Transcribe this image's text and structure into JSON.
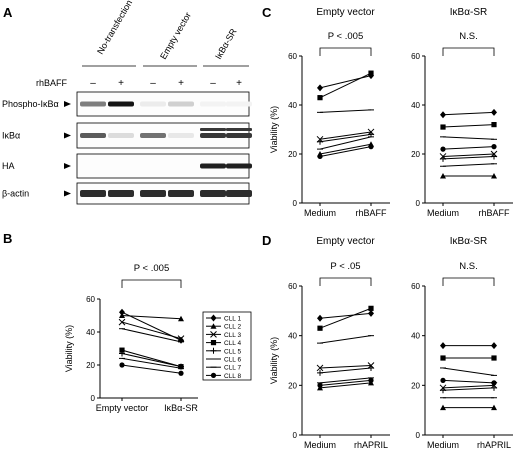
{
  "panels": {
    "A": {
      "letter": "A",
      "columns": [
        "No-transfection",
        "Empty vector",
        "IκBα-SR"
      ],
      "treatment_label": "rhBAFF",
      "signs": [
        "–",
        "+",
        "–",
        "+",
        "–",
        "+"
      ],
      "rows": [
        "Phospho-IκBα",
        "IκBα",
        "HA",
        "β-actin"
      ],
      "row_bands": {
        "Phospho-IκBα": [
          0.55,
          1.0,
          0.08,
          0.2,
          0.05,
          0.05
        ],
        "IκBα": [
          0.7,
          0.15,
          0.6,
          0.1,
          0.85,
          0.85
        ],
        "HA": [
          0,
          0,
          0,
          0,
          0.95,
          0.95
        ],
        "β-actin": [
          0.9,
          0.9,
          0.9,
          0.9,
          0.9,
          0.9
        ]
      }
    },
    "B": {
      "letter": "B",
      "sig": "P < .005"
    },
    "C": {
      "letter": "C"
    },
    "D": {
      "letter": "D"
    }
  },
  "chart_data": [
    {
      "id": "B",
      "type": "line",
      "title": "",
      "ylabel": "Viability (%)",
      "ylim": [
        0,
        60
      ],
      "yticks": [
        0,
        20,
        40,
        60
      ],
      "categories": [
        "Empty vector",
        "IκBα-SR"
      ],
      "sig": "P < .005",
      "legend": [
        "CLL 1",
        "CLL 2",
        "CLL 3",
        "CLL 4",
        "CLL 5",
        "CLL 6",
        "CLL 7",
        "CLL 8"
      ],
      "markers": [
        "diamond",
        "triangle",
        "x",
        "square",
        "plus",
        "line",
        "line",
        "circle"
      ],
      "series": [
        {
          "name": "CLL 1",
          "values": [
            52,
            35
          ]
        },
        {
          "name": "CLL 2",
          "values": [
            50,
            48
          ]
        },
        {
          "name": "CLL 3",
          "values": [
            46,
            36
          ]
        },
        {
          "name": "CLL 4",
          "values": [
            29,
            19
          ]
        },
        {
          "name": "CLL 5",
          "values": [
            27,
            19
          ]
        },
        {
          "name": "CLL 6",
          "values": [
            24,
            18
          ]
        },
        {
          "name": "CLL 7",
          "values": [
            42,
            34
          ]
        },
        {
          "name": "CLL 8",
          "values": [
            20,
            15
          ]
        }
      ]
    },
    {
      "id": "C1",
      "type": "line",
      "title": "Empty vector",
      "ylabel": "Viability (%)",
      "ylim": [
        0,
        60
      ],
      "yticks": [
        0,
        20,
        40,
        60
      ],
      "categories": [
        "Medium",
        "rhBAFF"
      ],
      "sig": "P < .005",
      "markers": [
        "diamond",
        "triangle",
        "x",
        "square",
        "plus",
        "line",
        "line",
        "circle"
      ],
      "series": [
        {
          "name": "CLL 1",
          "values": [
            47,
            52
          ]
        },
        {
          "name": "CLL 2",
          "values": [
            20,
            24
          ]
        },
        {
          "name": "CLL 3",
          "values": [
            26,
            29
          ]
        },
        {
          "name": "CLL 4",
          "values": [
            43,
            53
          ]
        },
        {
          "name": "CLL 5",
          "values": [
            25,
            28
          ]
        },
        {
          "name": "CLL 6",
          "values": [
            22,
            27
          ]
        },
        {
          "name": "CLL 7",
          "values": [
            37,
            38
          ]
        },
        {
          "name": "CLL 8",
          "values": [
            19,
            23
          ]
        }
      ]
    },
    {
      "id": "C2",
      "type": "line",
      "title": "IκBα-SR",
      "ylabel": "",
      "ylim": [
        0,
        60
      ],
      "yticks": [
        0,
        20,
        40,
        60
      ],
      "categories": [
        "Medium",
        "rhBAFF"
      ],
      "sig": "N.S.",
      "markers": [
        "diamond",
        "triangle",
        "x",
        "square",
        "plus",
        "line",
        "line",
        "circle"
      ],
      "series": [
        {
          "name": "CLL 1",
          "values": [
            36,
            37
          ]
        },
        {
          "name": "CLL 2",
          "values": [
            11,
            11
          ]
        },
        {
          "name": "CLL 3",
          "values": [
            19,
            20
          ]
        },
        {
          "name": "CLL 4",
          "values": [
            31,
            32
          ]
        },
        {
          "name": "CLL 5",
          "values": [
            18,
            19
          ]
        },
        {
          "name": "CLL 6",
          "values": [
            15,
            16
          ]
        },
        {
          "name": "CLL 7",
          "values": [
            27,
            26
          ]
        },
        {
          "name": "CLL 8",
          "values": [
            22,
            23
          ]
        }
      ]
    },
    {
      "id": "D1",
      "type": "line",
      "title": "Empty vector",
      "ylabel": "Viability (%)",
      "ylim": [
        0,
        60
      ],
      "yticks": [
        0,
        20,
        40,
        60
      ],
      "categories": [
        "Medium",
        "rhAPRIL"
      ],
      "sig": "P < .05",
      "markers": [
        "diamond",
        "triangle",
        "x",
        "square",
        "plus",
        "line",
        "line",
        "circle"
      ],
      "series": [
        {
          "name": "CLL 1",
          "values": [
            47,
            49
          ]
        },
        {
          "name": "CLL 2",
          "values": [
            19,
            21
          ]
        },
        {
          "name": "CLL 3",
          "values": [
            27,
            28
          ]
        },
        {
          "name": "CLL 4",
          "values": [
            43,
            51
          ]
        },
        {
          "name": "CLL 5",
          "values": [
            25,
            27
          ]
        },
        {
          "name": "CLL 6",
          "values": [
            21,
            23
          ]
        },
        {
          "name": "CLL 7",
          "values": [
            37,
            40
          ]
        },
        {
          "name": "CLL 8",
          "values": [
            20,
            22
          ]
        }
      ]
    },
    {
      "id": "D2",
      "type": "line",
      "title": "IκBα-SR",
      "ylabel": "",
      "ylim": [
        0,
        60
      ],
      "yticks": [
        0,
        20,
        40,
        60
      ],
      "categories": [
        "Medium",
        "rhAPRIL"
      ],
      "sig": "N.S.",
      "markers": [
        "diamond",
        "triangle",
        "x",
        "square",
        "plus",
        "line",
        "line",
        "circle"
      ],
      "series": [
        {
          "name": "CLL 1",
          "values": [
            36,
            36
          ]
        },
        {
          "name": "CLL 2",
          "values": [
            11,
            11
          ]
        },
        {
          "name": "CLL 3",
          "values": [
            19,
            20
          ]
        },
        {
          "name": "CLL 4",
          "values": [
            31,
            31
          ]
        },
        {
          "name": "CLL 5",
          "values": [
            18,
            19
          ]
        },
        {
          "name": "CLL 6",
          "values": [
            15,
            15
          ]
        },
        {
          "name": "CLL 7",
          "values": [
            27,
            24
          ]
        },
        {
          "name": "CLL 8",
          "values": [
            22,
            21
          ]
        }
      ]
    }
  ]
}
